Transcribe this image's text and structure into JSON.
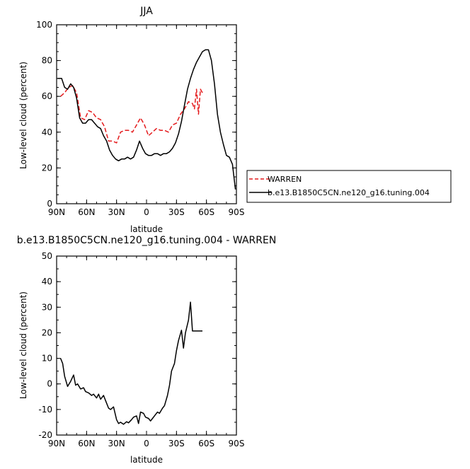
{
  "chart_data": [
    {
      "type": "line",
      "title": "JJA",
      "xlabel": "latitude",
      "ylabel": "Low-level cloud (percent)",
      "xlim": [
        90,
        -90
      ],
      "ylim": [
        0,
        100
      ],
      "x_ticks": [
        90,
        60,
        30,
        0,
        -30,
        -60,
        -90
      ],
      "x_tick_labels": [
        "90N",
        "60N",
        "30N",
        "0",
        "30S",
        "60S",
        "90S"
      ],
      "y_ticks": [
        0,
        20,
        40,
        60,
        80,
        100
      ],
      "y_tick_labels": [
        "0",
        "20",
        "40",
        "60",
        "80",
        "100"
      ],
      "legend_position": "right",
      "series": [
        {
          "name": "WARREN",
          "color": "#e41a1c",
          "dash": true,
          "x": [
            86,
            82,
            78,
            74,
            70,
            66,
            62,
            58,
            54,
            50,
            46,
            42,
            38,
            34,
            30,
            26,
            22,
            18,
            14,
            10,
            6,
            2,
            -2,
            -6,
            -10,
            -14,
            -18,
            -22,
            -26,
            -30,
            -34,
            -38,
            -42,
            -46,
            -48,
            -50,
            -52,
            -54,
            -56
          ],
          "y": [
            60,
            62,
            65,
            66,
            62,
            48,
            47,
            52,
            51,
            48,
            47,
            43,
            35,
            35,
            34,
            40,
            41,
            41,
            40,
            44,
            48,
            44,
            38,
            40,
            42,
            41,
            41,
            40,
            44,
            45,
            50,
            53,
            57,
            56,
            53,
            64,
            50,
            64,
            62
          ]
        },
        {
          "name": "b.e13.B1850C5CN.ne120_g16.tuning.004",
          "color": "#000000",
          "dash": false,
          "x": [
            89,
            85,
            82,
            79,
            76,
            73,
            70,
            67,
            64,
            61,
            58,
            55,
            52,
            49,
            46,
            43,
            40,
            37,
            34,
            31,
            28,
            25,
            22,
            19,
            16,
            13,
            10,
            7,
            4,
            1,
            -2,
            -5,
            -8,
            -11,
            -14,
            -17,
            -20,
            -23,
            -26,
            -29,
            -32,
            -35,
            -38,
            -41,
            -44,
            -47,
            -50,
            -53,
            -56,
            -59,
            -62,
            -65,
            -68,
            -71,
            -74,
            -77,
            -80,
            -83,
            -86,
            -89
          ],
          "y": [
            70,
            70,
            65,
            64,
            67,
            65,
            59,
            48,
            45,
            45,
            47,
            47,
            45,
            43,
            42,
            38,
            35,
            30,
            27,
            25,
            24,
            25,
            25,
            26,
            25,
            26,
            30,
            35,
            31,
            28,
            27,
            27,
            28,
            28,
            27,
            28,
            28,
            29,
            31,
            34,
            39,
            46,
            55,
            64,
            70,
            75,
            79,
            82,
            85,
            86,
            86,
            80,
            67,
            50,
            40,
            33,
            27,
            26,
            22,
            8
          ]
        }
      ]
    },
    {
      "type": "line",
      "title": "b.e13.B1850C5CN.ne120_g16.tuning.004 - WARREN",
      "xlabel": "latitude",
      "ylabel": "Low-level cloud (percent)",
      "xlim": [
        90,
        -90
      ],
      "ylim": [
        -20,
        50
      ],
      "x_ticks": [
        90,
        60,
        30,
        0,
        -30,
        -60,
        -90
      ],
      "x_tick_labels": [
        "90N",
        "60N",
        "30N",
        "0",
        "30S",
        "60S",
        "90S"
      ],
      "y_ticks": [
        -20,
        -10,
        0,
        10,
        20,
        30,
        40,
        50
      ],
      "y_tick_labels": [
        "-20",
        "-10",
        "0",
        "10",
        "20",
        "30",
        "40",
        "50"
      ],
      "series": [
        {
          "color": "#000000",
          "dash": false,
          "x": [
            86,
            84,
            82,
            79,
            76,
            73,
            71,
            69,
            66,
            63,
            61,
            58,
            55,
            53,
            50,
            48,
            46,
            43,
            41,
            38,
            36,
            33,
            30,
            28,
            26,
            23,
            20,
            18,
            15,
            13,
            10,
            8,
            6,
            3,
            1,
            -2,
            -4,
            -6,
            -9,
            -11,
            -13,
            -16,
            -18,
            -21,
            -23,
            -25,
            -28,
            -30,
            -32,
            -35,
            -37,
            -39,
            -42,
            -44,
            -46,
            -48,
            -50,
            -52,
            -54,
            -56
          ],
          "y": [
            10,
            8,
            3,
            -1,
            1,
            3.5,
            -0.5,
            0,
            -2,
            -1.5,
            -3,
            -3.5,
            -4.5,
            -4,
            -5.5,
            -4,
            -6,
            -4.5,
            -6.5,
            -9.5,
            -10,
            -9,
            -14,
            -15.5,
            -15,
            -15.8,
            -14.8,
            -15.2,
            -14,
            -13,
            -12.5,
            -15.5,
            -11,
            -11.5,
            -13,
            -13.5,
            -14.5,
            -13.5,
            -12,
            -11,
            -11.5,
            -9.5,
            -8.5,
            -4.5,
            -0.5,
            5,
            8,
            13,
            17,
            21,
            14,
            20,
            25,
            32,
            20.7,
            20.7,
            20.7,
            20.7,
            20.7,
            20.7
          ]
        }
      ]
    }
  ]
}
